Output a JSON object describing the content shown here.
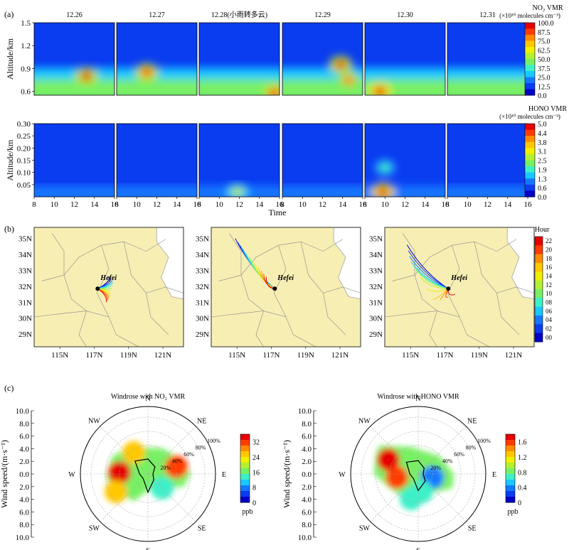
{
  "panel_labels": {
    "a": "(a)",
    "b": "(b)",
    "c": "(c)"
  },
  "colors": {
    "jet": [
      "#0000c8",
      "#0a3cf0",
      "#1478ff",
      "#19c8ff",
      "#3cf0c8",
      "#78f064",
      "#b4f032",
      "#f0f000",
      "#ffc800",
      "#ff8c00",
      "#ff3c00",
      "#e60000"
    ],
    "map_land": "#f7eeb4",
    "map_sea": "#ffffff",
    "border": "#888888"
  },
  "chart_data": [
    {
      "type": "heatmap",
      "id": "no2-profiles",
      "title": "",
      "dates": [
        "12.26",
        "12.27",
        "12.28(小雨转多云)",
        "12.29",
        "12.30",
        "12.31"
      ],
      "ylabel": "Altitude/km",
      "ylim": [
        0.55,
        1.5
      ],
      "yticks": [
        "0.6",
        "0.9",
        "1.2",
        "1.5"
      ],
      "ytick_values": [
        0.6,
        0.9,
        1.2,
        1.5
      ],
      "colorbar_title": "NO₂ VMR",
      "colorbar_unit": "(×10¹⁰ molecules cm⁻³)",
      "colorbar_ticks": [
        "100.0",
        "87.5",
        "75.0",
        "62.5",
        "50.0",
        "37.5",
        "25.0",
        "12.5",
        "0.0"
      ],
      "hotspots": [
        {
          "day": 0,
          "time": 13.2,
          "alt": 0.8,
          "value": 95
        },
        {
          "day": 1,
          "time": 11.0,
          "alt": 0.85,
          "value": 90
        },
        {
          "day": 2,
          "time": 15.5,
          "alt": 0.58,
          "value": 85
        },
        {
          "day": 3,
          "time": 13.8,
          "alt": 0.95,
          "value": 95
        },
        {
          "day": 3,
          "time": 14.6,
          "alt": 0.75,
          "value": 80
        },
        {
          "day": 4,
          "time": 9.5,
          "alt": 0.6,
          "value": 100
        }
      ]
    },
    {
      "type": "heatmap",
      "id": "hono-profiles",
      "title": "",
      "xlabel": "Time",
      "xticks": [
        "8",
        "10",
        "12",
        "14",
        "16"
      ],
      "ylabel": "Altitude/km",
      "ylim": [
        0,
        0.3
      ],
      "yticks": [
        "0.05",
        "0.10",
        "0.15",
        "0.20",
        "0.25",
        "0.30"
      ],
      "ytick_values": [
        0.05,
        0.1,
        0.15,
        0.2,
        0.25,
        0.3
      ],
      "colorbar_title": "HONO VMR",
      "colorbar_unit": "(×10¹⁰ molecules cm⁻³)",
      "colorbar_ticks": [
        "5.0",
        "4.4",
        "3.8",
        "3.1",
        "2.5",
        "1.9",
        "1.3",
        "0.6",
        "0.0"
      ],
      "hotspots": [
        {
          "day": 2,
          "time": 11.8,
          "alt": 0.02,
          "value": 2.5
        },
        {
          "day": 4,
          "time": 9.8,
          "alt": 0.02,
          "value": 5.0
        },
        {
          "day": 4,
          "time": 10.0,
          "alt": 0.12,
          "value": 2.0
        }
      ]
    },
    {
      "type": "line",
      "id": "back-trajectories",
      "title": "",
      "city_label": "Hefei",
      "city_coord": [
        117.2,
        31.85
      ],
      "xticks": [
        "115N",
        "117N",
        "119N",
        "121N"
      ],
      "xtick_values": [
        115,
        117,
        119,
        121
      ],
      "yticks": [
        "29N",
        "30N",
        "31N",
        "32N",
        "33N",
        "34N",
        "35N"
      ],
      "ytick_values": [
        29,
        30,
        31,
        32,
        33,
        34,
        35
      ],
      "xlim": [
        113.5,
        122.2
      ],
      "ylim": [
        28.2,
        35.7
      ],
      "colorbar_title": "Hour",
      "colorbar_ticks": [
        "22",
        "20",
        "18",
        "16",
        "14",
        "12",
        "10",
        "08",
        "06",
        "04",
        "02",
        "00"
      ],
      "maps": [
        {
          "trajectory_ends": [
            [
              117.9,
              32.6
            ],
            [
              118.1,
              32.3
            ],
            [
              118.0,
              31.8
            ],
            [
              117.9,
              31.3
            ],
            [
              117.7,
              31.0
            ]
          ]
        },
        {
          "trajectory_ends": [
            [
              114.9,
              35.0
            ],
            [
              115.3,
              34.4
            ],
            [
              115.8,
              33.7
            ],
            [
              116.3,
              33.1
            ],
            [
              116.7,
              32.6
            ]
          ]
        },
        {
          "trajectory_ends": [
            [
              114.8,
              34.6
            ],
            [
              115.0,
              33.6
            ],
            [
              115.4,
              32.9
            ],
            [
              116.4,
              31.0
            ],
            [
              117.6,
              31.5
            ]
          ]
        }
      ]
    },
    {
      "type": "scatter",
      "id": "windroses",
      "ylabel": "Wind speed/(m·s⁻¹)",
      "yticks": [
        "10.0",
        "8.0",
        "6.0",
        "4.0",
        "2.0",
        "0.0",
        "2.0",
        "4.0",
        "6.0",
        "8.0",
        "10.0"
      ],
      "directions": [
        "N",
        "NE",
        "E",
        "SE",
        "S",
        "SW",
        "W",
        "NW"
      ],
      "ring_labels": [
        "20%",
        "40%",
        "60%",
        "80%",
        "100%"
      ],
      "roses": [
        {
          "title": "Windrose with NO₂ VMR",
          "colorbar_ticks": [
            "32",
            "24",
            "16",
            "8",
            "0"
          ],
          "colorbar_max": 36,
          "unit": "ppb",
          "frequency_polygon_pct": [
            [
              0,
              18
            ],
            [
              45,
              12
            ],
            [
              90,
              6
            ],
            [
              135,
              10
            ],
            [
              180,
              22
            ],
            [
              225,
              8
            ],
            [
              270,
              10
            ],
            [
              315,
              22
            ]
          ]
        },
        {
          "title": "Windrose with HONO VMR",
          "colorbar_ticks": [
            "1.6",
            "1.2",
            "0.8",
            "0.4",
            "0"
          ],
          "colorbar_max": 1.8,
          "unit": "ppb",
          "frequency_polygon_pct": [
            [
              0,
              16
            ],
            [
              45,
              10
            ],
            [
              90,
              6
            ],
            [
              135,
              12
            ],
            [
              180,
              20
            ],
            [
              225,
              8
            ],
            [
              270,
              10
            ],
            [
              315,
              20
            ]
          ]
        }
      ]
    }
  ]
}
